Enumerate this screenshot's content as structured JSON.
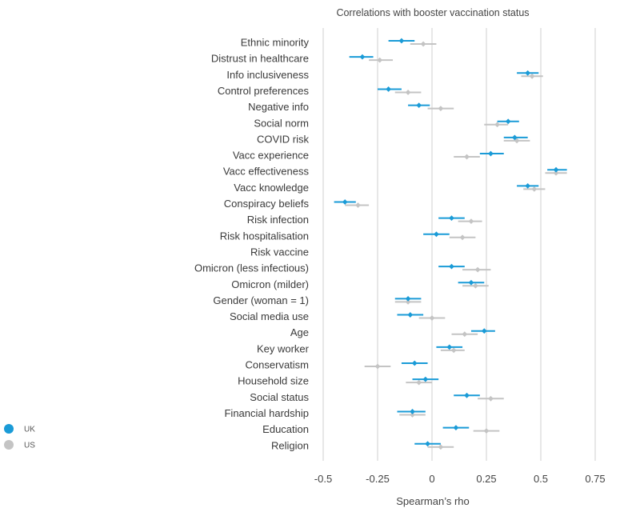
{
  "chart_data": {
    "type": "scatter",
    "title": "Correlations with booster vaccination status",
    "xlabel": "Spearman’s rho",
    "xlim": [
      -0.5,
      0.75
    ],
    "xticks": [
      -0.5,
      -0.25,
      0,
      0.25,
      0.5,
      0.75
    ],
    "xtick_labels": [
      "-0.5",
      "-0.25",
      "0",
      "0.25",
      "0.5",
      "0.75"
    ],
    "grid": "vertical",
    "legend_position": "bottom-left",
    "categories": [
      "Ethnic minority",
      "Distrust in healthcare",
      "Info inclusiveness",
      "Control preferences",
      "Negative info",
      "Social norm",
      "COVID risk",
      "Vacc experience",
      "Vacc effectiveness",
      "Vacc knowledge",
      "Conspiracy beliefs",
      "Risk infection",
      "Risk hospitalisation",
      "Risk vaccine",
      "Omicron (less infectious)",
      "Omicron (milder)",
      "Gender (woman = 1)",
      "Social media use",
      "Age",
      "Key worker",
      "Conservatism",
      "Household size",
      "Social status",
      "Financial hardship",
      "Education",
      "Religion"
    ],
    "series": [
      {
        "name": "UK",
        "color": "#1a9bd7",
        "values": [
          -0.14,
          -0.32,
          0.44,
          -0.2,
          -0.06,
          0.35,
          0.38,
          0.27,
          0.57,
          0.44,
          -0.4,
          0.09,
          0.02,
          null,
          0.09,
          0.18,
          -0.11,
          -0.1,
          0.24,
          0.08,
          -0.08,
          -0.03,
          0.16,
          -0.09,
          0.11,
          -0.02
        ],
        "ci_low": [
          -0.2,
          -0.38,
          0.39,
          -0.25,
          -0.11,
          0.3,
          0.33,
          0.22,
          0.53,
          0.39,
          -0.45,
          0.03,
          -0.04,
          null,
          0.03,
          0.12,
          -0.17,
          -0.16,
          0.18,
          0.02,
          -0.14,
          -0.09,
          0.1,
          -0.16,
          0.05,
          -0.08
        ],
        "ci_high": [
          -0.08,
          -0.27,
          0.49,
          -0.14,
          -0.01,
          0.4,
          0.44,
          0.33,
          0.62,
          0.49,
          -0.35,
          0.15,
          0.08,
          null,
          0.15,
          0.24,
          -0.05,
          -0.04,
          0.29,
          0.14,
          -0.02,
          0.03,
          0.22,
          -0.03,
          0.17,
          0.04
        ]
      },
      {
        "name": "US",
        "color": "#c4c4c4",
        "values": [
          -0.04,
          -0.24,
          0.46,
          -0.11,
          0.04,
          0.3,
          0.39,
          0.16,
          0.57,
          0.47,
          -0.34,
          0.18,
          0.14,
          null,
          0.21,
          0.2,
          -0.11,
          0.0,
          0.15,
          0.1,
          -0.25,
          -0.06,
          0.27,
          -0.09,
          0.25,
          0.04
        ],
        "ci_low": [
          -0.1,
          -0.29,
          0.41,
          -0.17,
          -0.02,
          0.24,
          0.33,
          0.1,
          0.52,
          0.42,
          -0.4,
          0.12,
          0.08,
          null,
          0.14,
          0.14,
          -0.17,
          -0.06,
          0.09,
          0.04,
          -0.31,
          -0.12,
          0.21,
          -0.15,
          0.19,
          -0.02
        ],
        "ci_high": [
          0.02,
          -0.18,
          0.51,
          -0.05,
          0.1,
          0.35,
          0.45,
          0.22,
          0.62,
          0.52,
          -0.29,
          0.23,
          0.2,
          null,
          0.27,
          0.26,
          -0.05,
          0.06,
          0.21,
          0.15,
          -0.19,
          0.0,
          0.33,
          -0.03,
          0.31,
          0.1
        ]
      }
    ]
  }
}
